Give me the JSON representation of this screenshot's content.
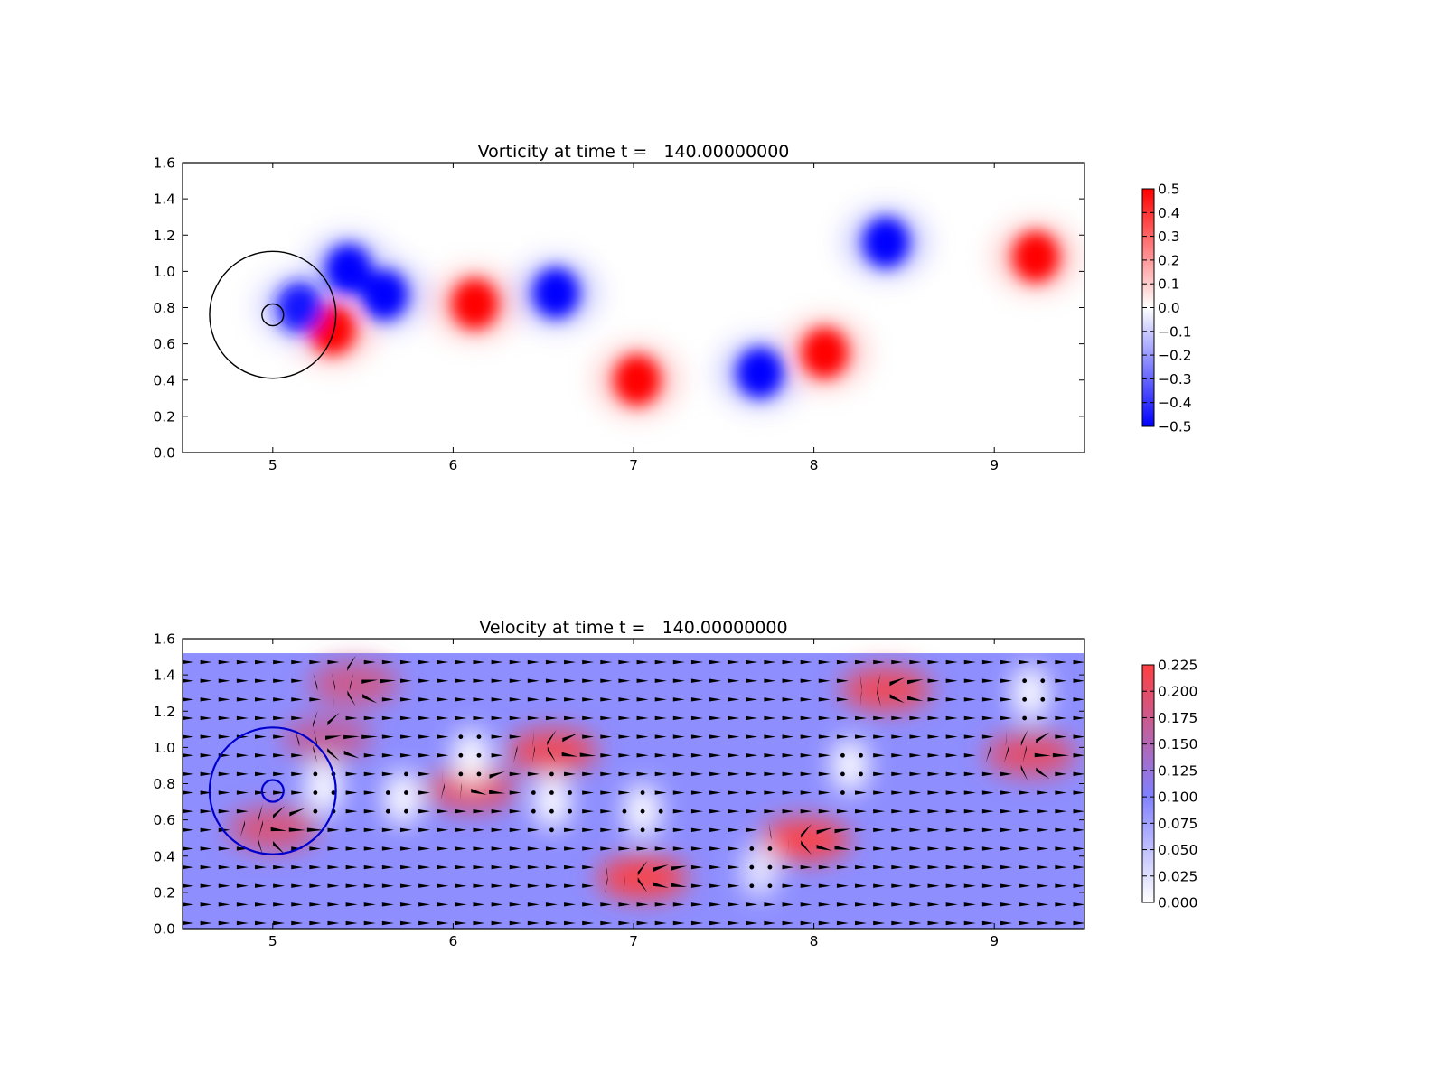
{
  "chart_data": [
    {
      "type": "heatmap",
      "title": "Vorticity at time t =   140.00000000",
      "xlabel": "",
      "ylabel": "",
      "xlim": [
        4.5,
        9.5
      ],
      "ylim": [
        0.0,
        1.6
      ],
      "xticks": [
        "5",
        "6",
        "7",
        "8",
        "9"
      ],
      "yticks": [
        "0.0",
        "0.2",
        "0.4",
        "0.6",
        "0.8",
        "1.0",
        "1.2",
        "1.4",
        "1.6"
      ],
      "grid": false,
      "colormap": [
        "#0000ff",
        "#ffffff",
        "#ff0000"
      ],
      "colorbar": {
        "range": [
          -0.5,
          0.5
        ],
        "ticks": [
          "0.5",
          "0.4",
          "0.3",
          "0.2",
          "0.1",
          "0.0",
          "−0.1",
          "−0.2",
          "−0.3",
          "−0.4",
          "−0.5"
        ]
      },
      "vortices": [
        {
          "x": 5.42,
          "y": 1.01,
          "value": -0.5
        },
        {
          "x": 5.62,
          "y": 0.87,
          "value": -0.5
        },
        {
          "x": 5.33,
          "y": 0.68,
          "value": 0.5
        },
        {
          "x": 5.15,
          "y": 0.8,
          "value": -0.45
        },
        {
          "x": 6.12,
          "y": 0.82,
          "value": 0.5
        },
        {
          "x": 6.57,
          "y": 0.88,
          "value": -0.5
        },
        {
          "x": 7.02,
          "y": 0.4,
          "value": 0.5
        },
        {
          "x": 7.7,
          "y": 0.44,
          "value": -0.5
        },
        {
          "x": 8.06,
          "y": 0.55,
          "value": 0.5
        },
        {
          "x": 8.4,
          "y": 1.16,
          "value": -0.5
        },
        {
          "x": 9.23,
          "y": 1.08,
          "value": 0.5
        }
      ],
      "circles": [
        {
          "x": 5.0,
          "y": 0.76,
          "r": 0.35,
          "color": "#000000"
        },
        {
          "x": 5.0,
          "y": 0.76,
          "r": 0.06,
          "color": "#000000"
        }
      ]
    },
    {
      "type": "heatmap",
      "title": "Velocity at time t =   140.00000000",
      "xlabel": "",
      "ylabel": "",
      "xlim": [
        4.5,
        9.5
      ],
      "ylim": [
        0.0,
        1.6
      ],
      "xticks": [
        "5",
        "6",
        "7",
        "8",
        "9"
      ],
      "yticks": [
        "0.0",
        "0.2",
        "0.4",
        "0.6",
        "0.8",
        "1.0",
        "1.2",
        "1.4",
        "1.6"
      ],
      "grid": false,
      "field_top": 1.52,
      "colormap": [
        "#ffffff",
        "#8080ff",
        "#ff4040"
      ],
      "colorbar": {
        "range": [
          0.0,
          0.225
        ],
        "ticks": [
          "0.225",
          "0.200",
          "0.175",
          "0.150",
          "0.125",
          "0.100",
          "0.075",
          "0.050",
          "0.025",
          "0.000"
        ]
      },
      "background_speed": 0.1,
      "fast_regions": [
        {
          "x": 5.0,
          "y": 0.55,
          "speed": 0.19
        },
        {
          "x": 5.3,
          "y": 1.05,
          "speed": 0.17
        },
        {
          "x": 5.45,
          "y": 1.35,
          "speed": 0.18
        },
        {
          "x": 6.1,
          "y": 0.77,
          "speed": 0.2
        },
        {
          "x": 6.55,
          "y": 0.98,
          "speed": 0.21
        },
        {
          "x": 7.05,
          "y": 0.28,
          "speed": 0.22
        },
        {
          "x": 7.95,
          "y": 0.49,
          "speed": 0.22
        },
        {
          "x": 8.4,
          "y": 1.32,
          "speed": 0.21
        },
        {
          "x": 9.2,
          "y": 0.96,
          "speed": 0.2
        }
      ],
      "slow_regions": [
        {
          "x": 5.28,
          "y": 0.78,
          "speed": 0.0
        },
        {
          "x": 5.72,
          "y": 0.72,
          "speed": 0.0
        },
        {
          "x": 6.1,
          "y": 0.95,
          "speed": 0.0
        },
        {
          "x": 6.55,
          "y": 0.7,
          "speed": 0.0
        },
        {
          "x": 7.05,
          "y": 0.65,
          "speed": 0.0
        },
        {
          "x": 7.7,
          "y": 0.32,
          "speed": 0.02
        },
        {
          "x": 8.2,
          "y": 0.9,
          "speed": 0.0
        },
        {
          "x": 9.2,
          "y": 1.3,
          "speed": 0.0
        }
      ],
      "circles": [
        {
          "x": 5.0,
          "y": 0.76,
          "r": 0.35,
          "color": "#0000cc"
        },
        {
          "x": 5.0,
          "y": 0.76,
          "r": 0.06,
          "color": "#0000cc"
        }
      ]
    }
  ]
}
